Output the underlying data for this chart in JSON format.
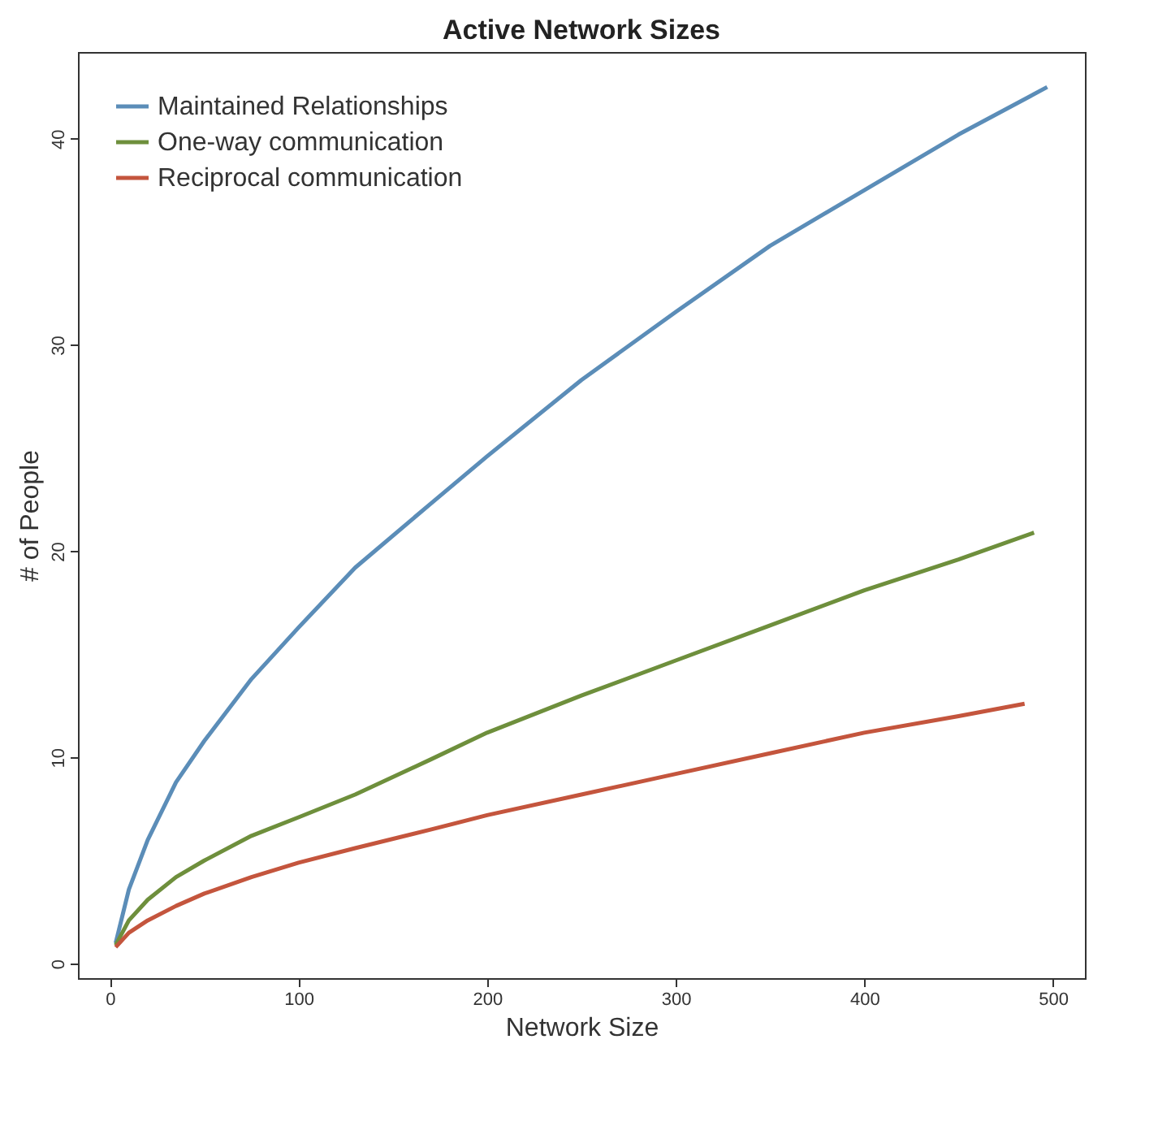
{
  "chart_data": {
    "type": "line",
    "title": "Active Network Sizes",
    "xlabel": "Network Size",
    "ylabel": "# of People",
    "x": [
      3,
      10,
      20,
      35,
      50,
      75,
      100,
      130,
      170,
      200,
      250,
      300,
      350,
      400,
      450,
      497
    ],
    "series": [
      {
        "name": "Maintained Relationships",
        "color": "#5b8db8",
        "values": [
          1,
          3.6,
          6,
          8.8,
          10.8,
          13.8,
          16.3,
          19.2,
          22.3,
          24.6,
          28.3,
          31.6,
          34.8,
          37.5,
          40.2,
          42.5
        ]
      },
      {
        "name": "One-way communication",
        "color": "#6e8f3c",
        "x": [
          3,
          10,
          20,
          35,
          50,
          75,
          100,
          130,
          170,
          200,
          250,
          300,
          350,
          400,
          450,
          490
        ],
        "values": [
          0.9,
          2.1,
          3.1,
          4.2,
          5,
          6.2,
          7.1,
          8.2,
          9.9,
          11.2,
          13,
          14.7,
          16.4,
          18.1,
          19.6,
          20.9
        ]
      },
      {
        "name": "Reciprocal communication",
        "color": "#c4553d",
        "x": [
          3,
          10,
          20,
          35,
          50,
          75,
          100,
          130,
          170,
          200,
          250,
          300,
          350,
          400,
          450,
          485
        ],
        "values": [
          0.8,
          1.5,
          2.1,
          2.8,
          3.4,
          4.2,
          4.9,
          5.6,
          6.5,
          7.2,
          8.2,
          9.2,
          10.2,
          11.2,
          12,
          12.6
        ]
      }
    ],
    "xlim": [
      -17,
      517
    ],
    "ylim": [
      -0.7,
      44.2
    ],
    "xticks": [
      0,
      100,
      200,
      300,
      400,
      500
    ],
    "yticks": [
      0,
      10,
      20,
      30,
      40
    ],
    "legend": "top left",
    "grid": false,
    "marker": "none",
    "line_style": "solid"
  }
}
